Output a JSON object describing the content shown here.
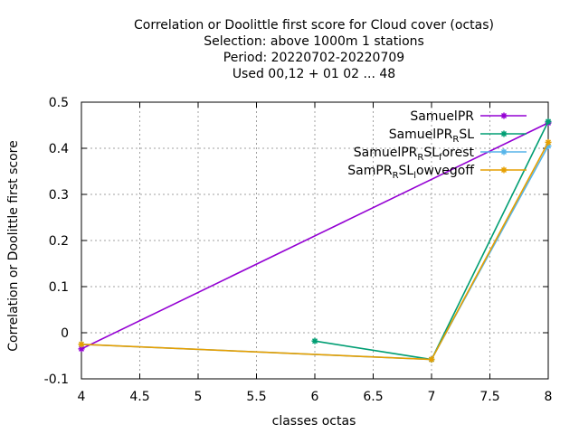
{
  "chart_data": {
    "type": "line",
    "title": [
      "Correlation or Doolittle first score  for Cloud cover (octas)",
      "Selection: above 1000m       1 stations",
      "Period: 20220702-20220709",
      "Used  00,12  + 01 02 ... 48"
    ],
    "xlabel": "classes octas",
    "ylabel": "Correlation or Doolittle first score",
    "xlim": [
      4,
      8
    ],
    "ylim": [
      -0.1,
      0.5
    ],
    "x_ticks": [
      4,
      4.5,
      5,
      5.5,
      6,
      6.5,
      7,
      7.5,
      8
    ],
    "x_tick_labels": [
      "4",
      "4.5",
      "5",
      "5.5",
      "6",
      "6.5",
      "7",
      "7.5",
      "8"
    ],
    "y_ticks": [
      -0.1,
      0,
      0.1,
      0.2,
      0.3,
      0.4,
      0.5
    ],
    "y_tick_labels": [
      "-0.1",
      "0",
      "0.1",
      "0.2",
      "0.3",
      "0.4",
      "0.5"
    ],
    "grid": true,
    "legend_position": "top-right",
    "series": [
      {
        "name": "SamuelPR",
        "color": "#9400d3",
        "x": [
          4,
          8
        ],
        "y": [
          -0.035,
          0.455
        ]
      },
      {
        "name": "SamuelPR_R SL",
        "color": "#009e73",
        "x": [
          6,
          7,
          8
        ],
        "y": [
          -0.018,
          -0.058,
          0.458
        ]
      },
      {
        "name": "SamuelPR_R SL_f orest",
        "color": "#56b4e9",
        "x": [
          4,
          7,
          8
        ],
        "y": [
          -0.025,
          -0.058,
          0.405
        ]
      },
      {
        "name": "SamPR_R SL_l owvegoff",
        "color": "#e69f00",
        "x": [
          4,
          7,
          8
        ],
        "y": [
          -0.025,
          -0.058,
          0.413
        ]
      }
    ],
    "legend_entries": [
      {
        "parts": [
          {
            "t": "SamuelPR",
            "sub": false
          }
        ]
      },
      {
        "parts": [
          {
            "t": "SamuelPR",
            "sub": false
          },
          {
            "t": "R",
            "sub": true
          },
          {
            "t": "SL",
            "sub": false
          }
        ]
      },
      {
        "parts": [
          {
            "t": "SamuelPR",
            "sub": false
          },
          {
            "t": "R",
            "sub": true
          },
          {
            "t": "SL",
            "sub": false
          },
          {
            "t": "f",
            "sub": true
          },
          {
            "t": "orest",
            "sub": false
          }
        ]
      },
      {
        "parts": [
          {
            "t": "SamPR",
            "sub": false
          },
          {
            "t": "R",
            "sub": true
          },
          {
            "t": "SL",
            "sub": false
          },
          {
            "t": "l",
            "sub": true
          },
          {
            "t": "owvegoff",
            "sub": false
          }
        ]
      }
    ]
  }
}
